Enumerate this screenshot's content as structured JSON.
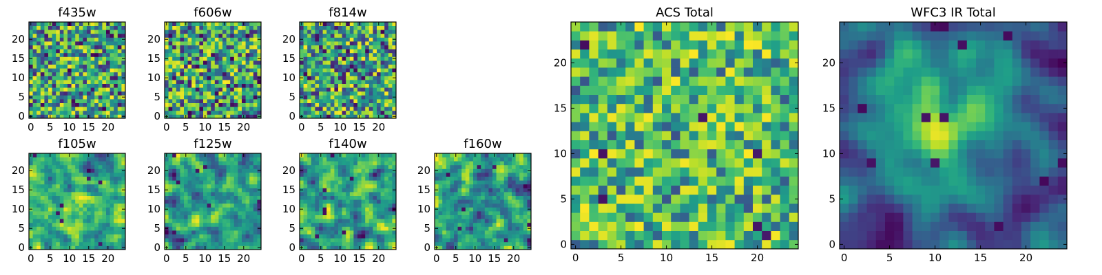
{
  "chart_data": [
    {
      "type": "heatmap",
      "id": "f435w",
      "title": "f435w",
      "xticks": [
        0,
        5,
        10,
        15,
        20
      ],
      "yticks": [
        0,
        5,
        10,
        15,
        20
      ],
      "xlim": [
        -0.5,
        24.5
      ],
      "ylim": [
        -0.5,
        24.5
      ],
      "grid_size": 25,
      "pattern_seed": 11,
      "pattern": "noise",
      "colormap": "viridis"
    },
    {
      "type": "heatmap",
      "id": "f606w",
      "title": "f606w",
      "xticks": [
        0,
        5,
        10,
        15,
        20
      ],
      "yticks": [
        0,
        5,
        10,
        15,
        20
      ],
      "xlim": [
        -0.5,
        24.5
      ],
      "ylim": [
        -0.5,
        24.5
      ],
      "grid_size": 25,
      "pattern_seed": 23,
      "pattern": "noise",
      "colormap": "viridis"
    },
    {
      "type": "heatmap",
      "id": "f814w",
      "title": "f814w",
      "xticks": [
        0,
        5,
        10,
        15,
        20
      ],
      "yticks": [
        0,
        5,
        10,
        15,
        20
      ],
      "xlim": [
        -0.5,
        24.5
      ],
      "ylim": [
        -0.5,
        24.5
      ],
      "grid_size": 25,
      "pattern_seed": 37,
      "pattern": "noise",
      "colormap": "viridis"
    },
    {
      "type": "heatmap",
      "id": "f105w",
      "title": "f105w",
      "xticks": [
        0,
        5,
        10,
        15,
        20
      ],
      "yticks": [
        0,
        5,
        10,
        15,
        20
      ],
      "xlim": [
        -0.5,
        24.5
      ],
      "ylim": [
        -0.5,
        24.5
      ],
      "grid_size": 25,
      "pattern_seed": 41,
      "pattern": "smooth",
      "colormap": "viridis"
    },
    {
      "type": "heatmap",
      "id": "f125w",
      "title": "f125w",
      "xticks": [
        0,
        5,
        10,
        15,
        20
      ],
      "yticks": [
        0,
        5,
        10,
        15,
        20
      ],
      "xlim": [
        -0.5,
        24.5
      ],
      "ylim": [
        -0.5,
        24.5
      ],
      "grid_size": 25,
      "pattern_seed": 53,
      "pattern": "smooth",
      "colormap": "viridis"
    },
    {
      "type": "heatmap",
      "id": "f140w",
      "title": "f140w",
      "xticks": [
        0,
        5,
        10,
        15,
        20
      ],
      "yticks": [
        0,
        5,
        10,
        15,
        20
      ],
      "xlim": [
        -0.5,
        24.5
      ],
      "ylim": [
        -0.5,
        24.5
      ],
      "grid_size": 25,
      "pattern_seed": 67,
      "pattern": "smooth",
      "colormap": "viridis"
    },
    {
      "type": "heatmap",
      "id": "f160w",
      "title": "f160w",
      "xticks": [
        0,
        5,
        10,
        15,
        20
      ],
      "yticks": [
        0,
        5,
        10,
        15,
        20
      ],
      "xlim": [
        -0.5,
        24.5
      ],
      "ylim": [
        -0.5,
        24.5
      ],
      "grid_size": 25,
      "pattern_seed": 79,
      "pattern": "smooth",
      "colormap": "viridis"
    },
    {
      "type": "heatmap",
      "id": "acs-total",
      "title": "ACS Total",
      "xticks": [
        0,
        5,
        10,
        15,
        20
      ],
      "yticks": [
        0,
        5,
        10,
        15,
        20
      ],
      "xlim": [
        -0.5,
        24.5
      ],
      "ylim": [
        -0.5,
        24.5
      ],
      "grid_size": 25,
      "pattern_seed": 97,
      "pattern": "bright-noise",
      "colormap": "viridis"
    },
    {
      "type": "heatmap",
      "id": "wfc3-ir-total",
      "title": "WFC3 IR Total",
      "xticks": [
        0,
        5,
        10,
        15,
        20
      ],
      "yticks": [
        0,
        5,
        10,
        15,
        20
      ],
      "xlim": [
        -0.5,
        24.5
      ],
      "ylim": [
        -0.5,
        24.5
      ],
      "grid_size": 25,
      "pattern_seed": 113,
      "pattern": "centered-blob",
      "colormap": "viridis"
    }
  ]
}
